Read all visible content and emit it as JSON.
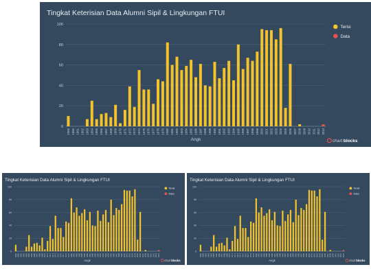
{
  "charts": [
    {
      "panel_name": "chart-panel-large",
      "chart_data": {
        "type": "bar",
        "title": "Tingkat Keterisian Data Alumni Sipil & Lingkungan FTUI",
        "xlabel": "Angk",
        "ylabel": "",
        "ylim": [
          0,
          100
        ],
        "yticks": [
          0,
          20,
          40,
          60,
          80,
          100
        ],
        "categories": [
          "1955",
          "1960",
          "1961",
          "1962",
          "1963",
          "1964",
          "1965",
          "1966",
          "1967",
          "1968",
          "1969",
          "1970",
          "1971",
          "1972",
          "1973",
          "1974",
          "1975",
          "1976",
          "1977",
          "1978",
          "1979",
          "1980",
          "1981",
          "1982",
          "1983",
          "1984",
          "1985",
          "1986",
          "1987",
          "1988",
          "1989",
          "1990",
          "1991",
          "1992",
          "1993",
          "1994",
          "1995",
          "1996",
          "1997",
          "1998",
          "1999",
          "2000",
          "2001",
          "2002",
          "2003",
          "2004",
          "2005",
          "2006",
          "2007",
          "2008",
          "2009",
          "2010",
          "2011",
          "2012",
          "2013"
        ],
        "series": [
          {
            "name": "Terisi",
            "color": "#f4c32b",
            "values": [
              10,
              0,
              0,
              0,
              7,
              25,
              7,
              12,
              13,
              9,
              21,
              3,
              16,
              39,
              19,
              55,
              36,
              36,
              22,
              46,
              44,
              82,
              60,
              68,
              55,
              59,
              65,
              48,
              61,
              40,
              39,
              63,
              47,
              57,
              64,
              45,
              80,
              56,
              67,
              64,
              73,
              95,
              94,
              94,
              85,
              96,
              18,
              61,
              0,
              2,
              0,
              0,
              0,
              0,
              0
            ]
          },
          {
            "name": "Data",
            "color": "#e8534b",
            "values": [
              0,
              0,
              0,
              0,
              0,
              0,
              0,
              0,
              0,
              0,
              0,
              0,
              0,
              0,
              0,
              0,
              0,
              0,
              0,
              0,
              0,
              0,
              0,
              0,
              0,
              0,
              0,
              0,
              0,
              0,
              0,
              0,
              0,
              0,
              0,
              0,
              0,
              0,
              0,
              0,
              0,
              0,
              0,
              0,
              0,
              0,
              0,
              0,
              0,
              0,
              0,
              0,
              0,
              0,
              2
            ]
          }
        ],
        "grid": true,
        "legend_position": "top-right"
      },
      "brand": {
        "part1": "chart",
        "part2": "blocks"
      }
    },
    {
      "panel_name": "chart-panel-small-left",
      "chart_data": {
        "type": "bar",
        "title": "Tingkat Keterisian Data Alumni Sipil & Lingkungan FTUI",
        "xlabel": "Angk",
        "ylabel": "",
        "ylim": [
          0,
          100
        ],
        "yticks": [
          0,
          20,
          40,
          60,
          80,
          100
        ],
        "categories": [
          "1955",
          "1960",
          "1961",
          "1962",
          "1963",
          "1964",
          "1965",
          "1966",
          "1967",
          "1968",
          "1969",
          "1970",
          "1971",
          "1972",
          "1973",
          "1974",
          "1975",
          "1976",
          "1977",
          "1978",
          "1979",
          "1980",
          "1981",
          "1982",
          "1983",
          "1984",
          "1985",
          "1986",
          "1987",
          "1988",
          "1989",
          "1990",
          "1991",
          "1992",
          "1993",
          "1994",
          "1995",
          "1996",
          "1997",
          "1998",
          "1999",
          "2000",
          "2001",
          "2002",
          "2003",
          "2004",
          "2005",
          "2006",
          "2007",
          "2008",
          "2009",
          "2010",
          "2011",
          "2012",
          "2013"
        ],
        "series": [
          {
            "name": "Terisi",
            "color": "#f4c32b",
            "values": [
              10,
              0,
              0,
              0,
              7,
              25,
              7,
              12,
              13,
              9,
              21,
              3,
              16,
              39,
              19,
              55,
              36,
              36,
              22,
              46,
              44,
              82,
              60,
              68,
              55,
              59,
              65,
              48,
              61,
              40,
              39,
              63,
              47,
              57,
              64,
              45,
              80,
              56,
              67,
              64,
              73,
              95,
              94,
              94,
              85,
              96,
              18,
              61,
              0,
              2,
              0,
              0,
              0,
              0,
              0
            ]
          },
          {
            "name": "Data",
            "color": "#e8534b",
            "values": [
              0,
              0,
              0,
              0,
              0,
              0,
              0,
              0,
              0,
              0,
              0,
              0,
              0,
              0,
              0,
              0,
              0,
              0,
              0,
              0,
              0,
              0,
              0,
              0,
              0,
              0,
              0,
              0,
              0,
              0,
              0,
              0,
              0,
              0,
              0,
              0,
              0,
              0,
              0,
              0,
              0,
              0,
              0,
              0,
              0,
              0,
              0,
              0,
              0,
              0,
              0,
              0,
              0,
              0,
              2
            ]
          }
        ],
        "grid": true,
        "legend_position": "top-right"
      },
      "brand": {
        "part1": "chart",
        "part2": "blocks"
      }
    },
    {
      "panel_name": "chart-panel-small-right",
      "chart_data": {
        "type": "bar",
        "title": "Tingkat Keterisian Data Alumni Sipil & Lingkungan FTUI",
        "xlabel": "Angk",
        "ylabel": "",
        "ylim": [
          0,
          100
        ],
        "yticks": [
          0,
          20,
          40,
          60,
          80,
          100
        ],
        "categories": [
          "1955",
          "1960",
          "1961",
          "1962",
          "1963",
          "1964",
          "1965",
          "1966",
          "1967",
          "1968",
          "1969",
          "1970",
          "1971",
          "1972",
          "1973",
          "1974",
          "1975",
          "1976",
          "1977",
          "1978",
          "1979",
          "1980",
          "1981",
          "1982",
          "1983",
          "1984",
          "1985",
          "1986",
          "1987",
          "1988",
          "1989",
          "1990",
          "1991",
          "1992",
          "1993",
          "1994",
          "1995",
          "1996",
          "1997",
          "1998",
          "1999",
          "2000",
          "2001",
          "2002",
          "2003",
          "2004",
          "2005",
          "2006",
          "2007",
          "2008",
          "2009",
          "2010",
          "2011",
          "2012",
          "2013"
        ],
        "series": [
          {
            "name": "Terisi",
            "color": "#f4c32b",
            "values": [
              10,
              0,
              0,
              0,
              7,
              25,
              7,
              12,
              13,
              9,
              21,
              3,
              16,
              39,
              19,
              55,
              36,
              36,
              22,
              46,
              44,
              82,
              60,
              68,
              55,
              59,
              65,
              48,
              61,
              40,
              39,
              63,
              47,
              57,
              64,
              45,
              80,
              56,
              67,
              64,
              73,
              95,
              94,
              94,
              85,
              96,
              18,
              61,
              0,
              2,
              0,
              0,
              0,
              0,
              0
            ]
          },
          {
            "name": "Data",
            "color": "#e8534b",
            "values": [
              0,
              0,
              0,
              0,
              0,
              0,
              0,
              0,
              0,
              0,
              0,
              0,
              0,
              0,
              0,
              0,
              0,
              0,
              0,
              0,
              0,
              0,
              0,
              0,
              0,
              0,
              0,
              0,
              0,
              0,
              0,
              0,
              0,
              0,
              0,
              0,
              0,
              0,
              0,
              0,
              0,
              0,
              0,
              0,
              0,
              0,
              0,
              0,
              0,
              0,
              0,
              0,
              0,
              0,
              2
            ]
          }
        ],
        "grid": true,
        "legend_position": "top-right"
      },
      "brand": {
        "part1": "chart",
        "part2": "blocks"
      }
    }
  ],
  "colors": {
    "panel_bg": "#34495e",
    "grid": "#4b6075",
    "axis": "#8a9bab"
  }
}
